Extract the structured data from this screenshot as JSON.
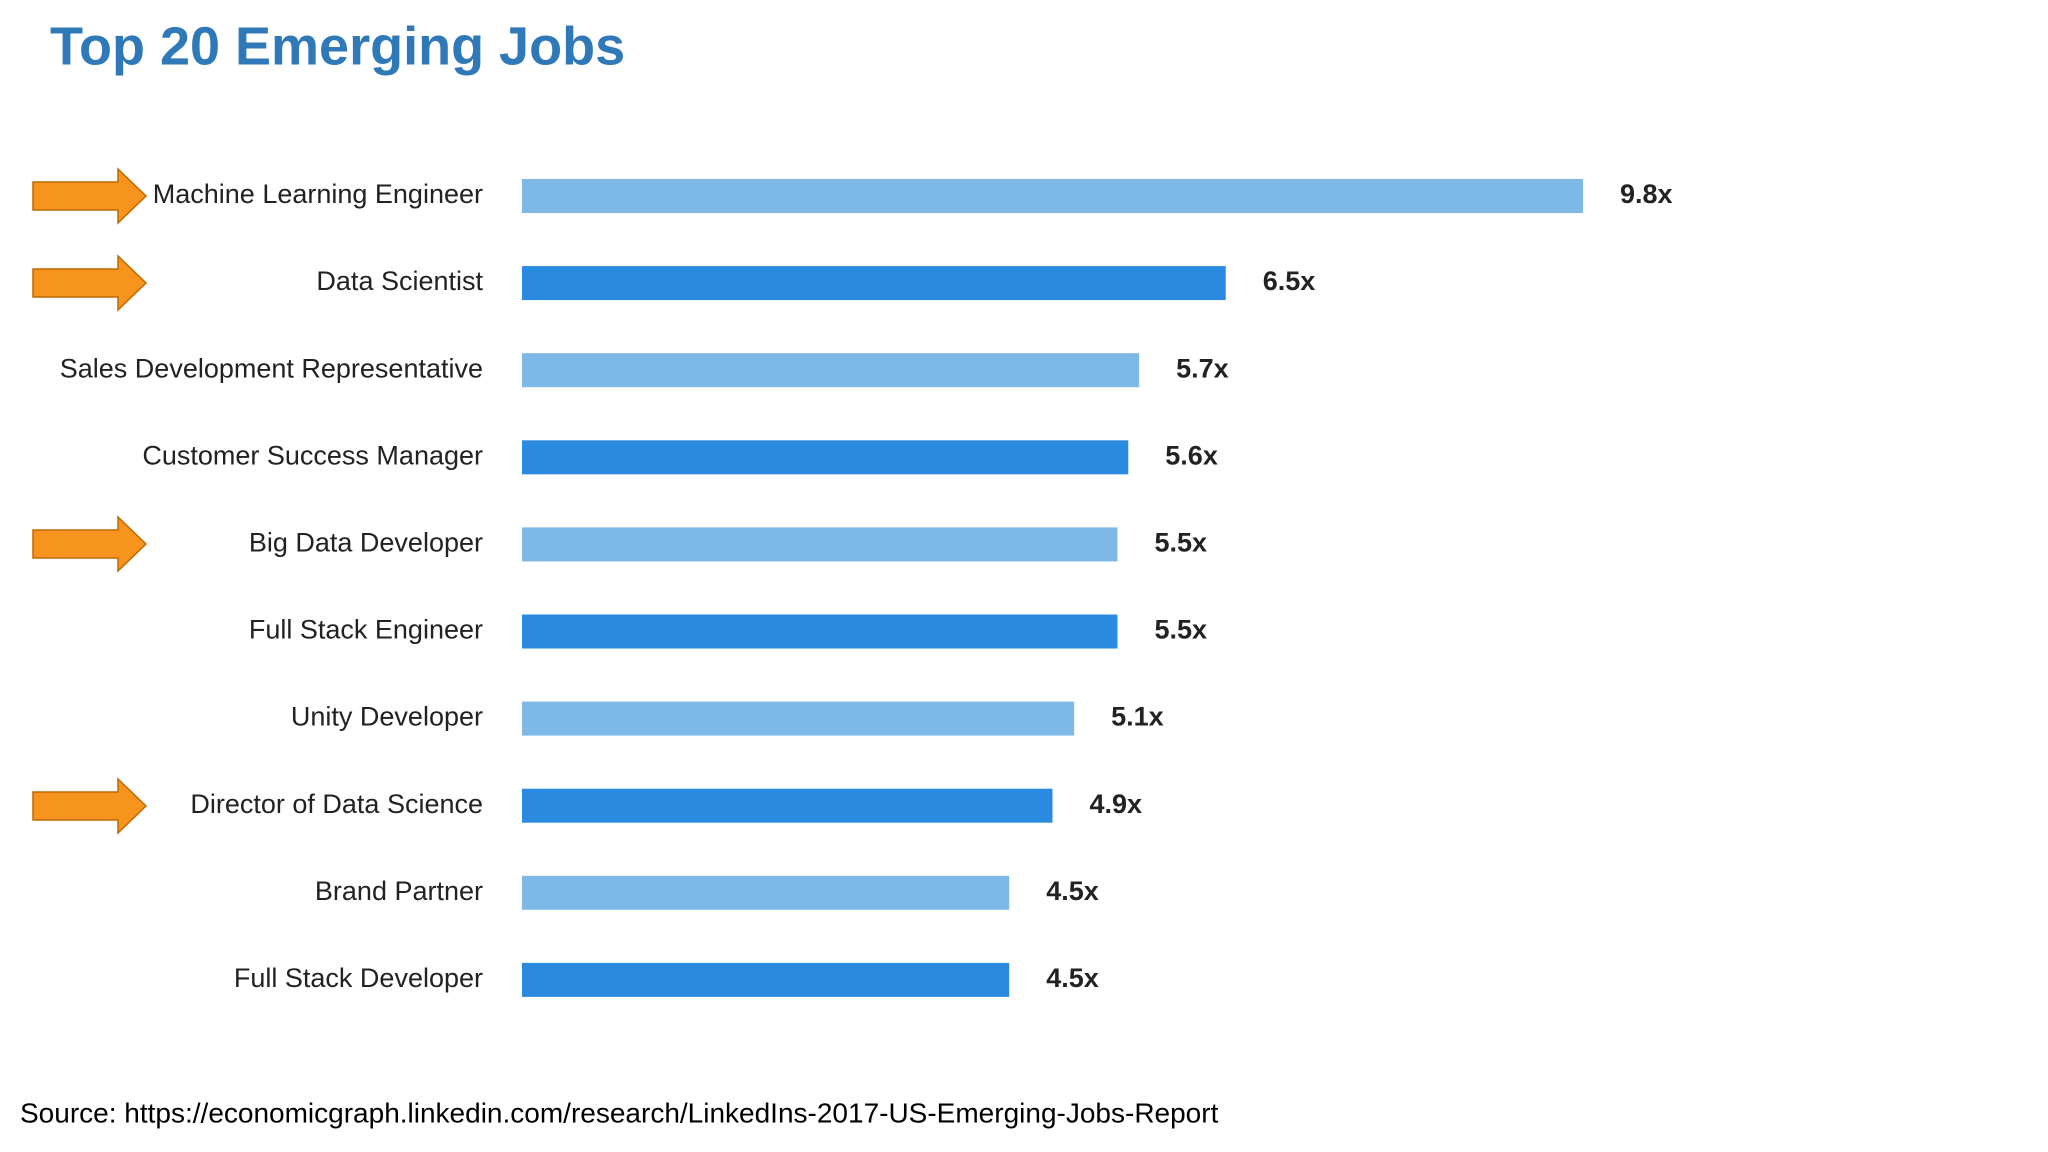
{
  "chart_data": {
    "type": "bar",
    "orientation": "horizontal",
    "title": "Top 20 Emerging Jobs",
    "categories": [
      "Machine Learning Engineer",
      "Data Scientist",
      "Sales Development Representative",
      "Customer Success Manager",
      "Big Data Developer",
      "Full Stack Engineer",
      "Unity Developer",
      "Director of Data Science",
      "Brand Partner",
      "Full Stack Developer"
    ],
    "values": [
      9.8,
      6.5,
      5.7,
      5.6,
      5.5,
      5.5,
      5.1,
      4.9,
      4.5,
      4.5
    ],
    "value_labels": [
      "9.8x",
      "6.5x",
      "5.7x",
      "5.6x",
      "5.5x",
      "5.5x",
      "5.1x",
      "4.9x",
      "4.5x",
      "4.5x"
    ],
    "colors": [
      "#7db8e6",
      "#2a8ae0",
      "#7db8e6",
      "#2a8ae0",
      "#7db8e6",
      "#2a8ae0",
      "#7db8e6",
      "#2a8ae0",
      "#7db8e6",
      "#2a8ae0"
    ],
    "source": "Source: https://economicgraph.linkedin.com/research/LinkedIns-2017-US-Emerging-Jobs-Report"
  }
}
